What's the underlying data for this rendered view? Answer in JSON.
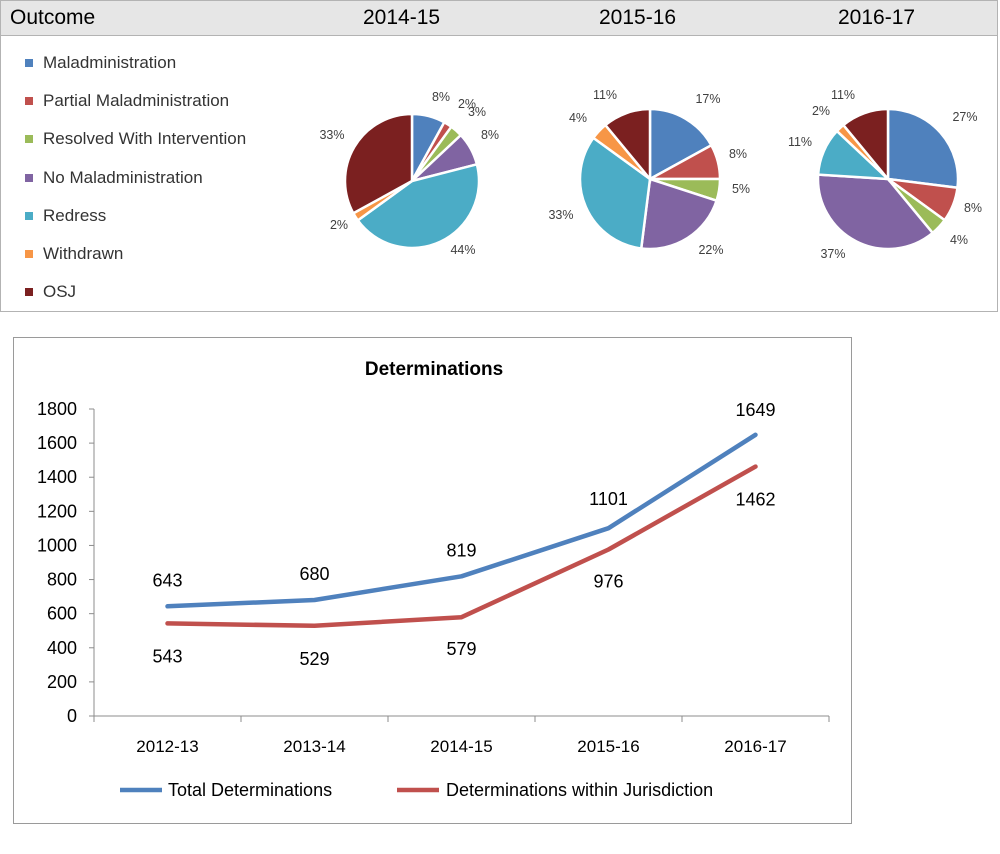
{
  "header": {
    "outcome_label": "Outcome",
    "years": [
      "2014-15",
      "2015-16",
      "2016-17"
    ]
  },
  "legend": [
    {
      "label": "Maladministration",
      "color": "#4f81bd"
    },
    {
      "label": "Partial Maladministration",
      "color": "#c0504d"
    },
    {
      "label": "Resolved With Intervention",
      "color": "#9bbb59"
    },
    {
      "label": "No Maladministration",
      "color": "#8064a2"
    },
    {
      "label": "Redress",
      "color": "#4bacc6"
    },
    {
      "label": "Withdrawn",
      "color": "#f79646"
    },
    {
      "label": "OSJ",
      "color": "#7b2020"
    }
  ],
  "chart_data": [
    {
      "type": "pie",
      "title": "2014-15",
      "labels": [
        "Maladministration",
        "Partial Maladministration",
        "Resolved With Intervention",
        "No Maladministration",
        "Redress",
        "Withdrawn",
        "OSJ"
      ],
      "values": [
        8,
        2,
        3,
        8,
        44,
        2,
        33
      ],
      "value_labels": [
        "8%",
        "2%",
        "3%",
        "8%",
        "44%",
        "2%",
        "33%"
      ]
    },
    {
      "type": "pie",
      "title": "2015-16",
      "labels": [
        "Maladministration",
        "Partial Maladministration",
        "Resolved With Intervention",
        "No Maladministration",
        "Redress",
        "Withdrawn",
        "OSJ"
      ],
      "values": [
        17,
        8,
        5,
        22,
        33,
        4,
        11
      ],
      "value_labels": [
        "17%",
        "8%",
        "5%",
        "22%",
        "33%",
        "4%",
        "11%"
      ]
    },
    {
      "type": "pie",
      "title": "2016-17",
      "labels": [
        "Maladministration",
        "Partial Maladministration",
        "Resolved With Intervention",
        "No Maladministration",
        "Redress",
        "Withdrawn",
        "OSJ"
      ],
      "values": [
        27,
        8,
        4,
        37,
        11,
        2,
        11
      ],
      "value_labels": [
        "27%",
        "8%",
        "4%",
        "37%",
        "11%",
        "2%",
        "11%"
      ]
    },
    {
      "type": "line",
      "title": "Determinations",
      "categories": [
        "2012-13",
        "2013-14",
        "2014-15",
        "2015-16",
        "2016-17"
      ],
      "series": [
        {
          "name": "Total Determinations",
          "values": [
            643,
            680,
            819,
            1101,
            1649
          ],
          "color": "#4f81bd"
        },
        {
          "name": "Determinations within Jurisdiction",
          "values": [
            543,
            529,
            579,
            976,
            1462
          ],
          "color": "#c0504d"
        }
      ],
      "y_ticks": [
        "0",
        "200",
        "400",
        "600",
        "800",
        "1000",
        "1200",
        "1400",
        "1600",
        "1800"
      ],
      "ylim": [
        0,
        1800
      ],
      "legend_position": "bottom",
      "grid": false
    }
  ]
}
